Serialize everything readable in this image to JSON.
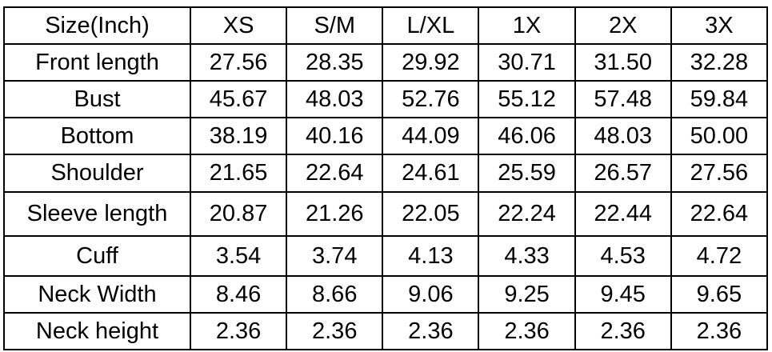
{
  "table": {
    "header": [
      "Size(Inch)",
      "XS",
      "S/M",
      "L/XL",
      "1X",
      "2X",
      "3X"
    ],
    "rows": [
      [
        "Front length",
        "27.56",
        "28.35",
        "29.92",
        "30.71",
        "31.50",
        "32.28"
      ],
      [
        "Bust",
        "45.67",
        "48.03",
        "52.76",
        "55.12",
        "57.48",
        "59.84"
      ],
      [
        "Bottom",
        "38.19",
        "40.16",
        "44.09",
        "46.06",
        "48.03",
        "50.00"
      ],
      [
        "Shoulder",
        "21.65",
        "22.64",
        "24.61",
        "25.59",
        "26.57",
        "27.56"
      ],
      [
        "Sleeve length",
        "20.87",
        "21.26",
        "22.05",
        "22.24",
        "22.44",
        "22.64"
      ],
      [
        "Cuff",
        "3.54",
        "3.74",
        "4.13",
        "4.33",
        "4.53",
        "4.72"
      ],
      [
        "Neck Width",
        "8.46",
        "8.66",
        "9.06",
        "9.25",
        "9.45",
        "9.65"
      ],
      [
        "Neck height",
        "2.36",
        "2.36",
        "2.36",
        "2.36",
        "2.36",
        "2.36"
      ]
    ]
  }
}
